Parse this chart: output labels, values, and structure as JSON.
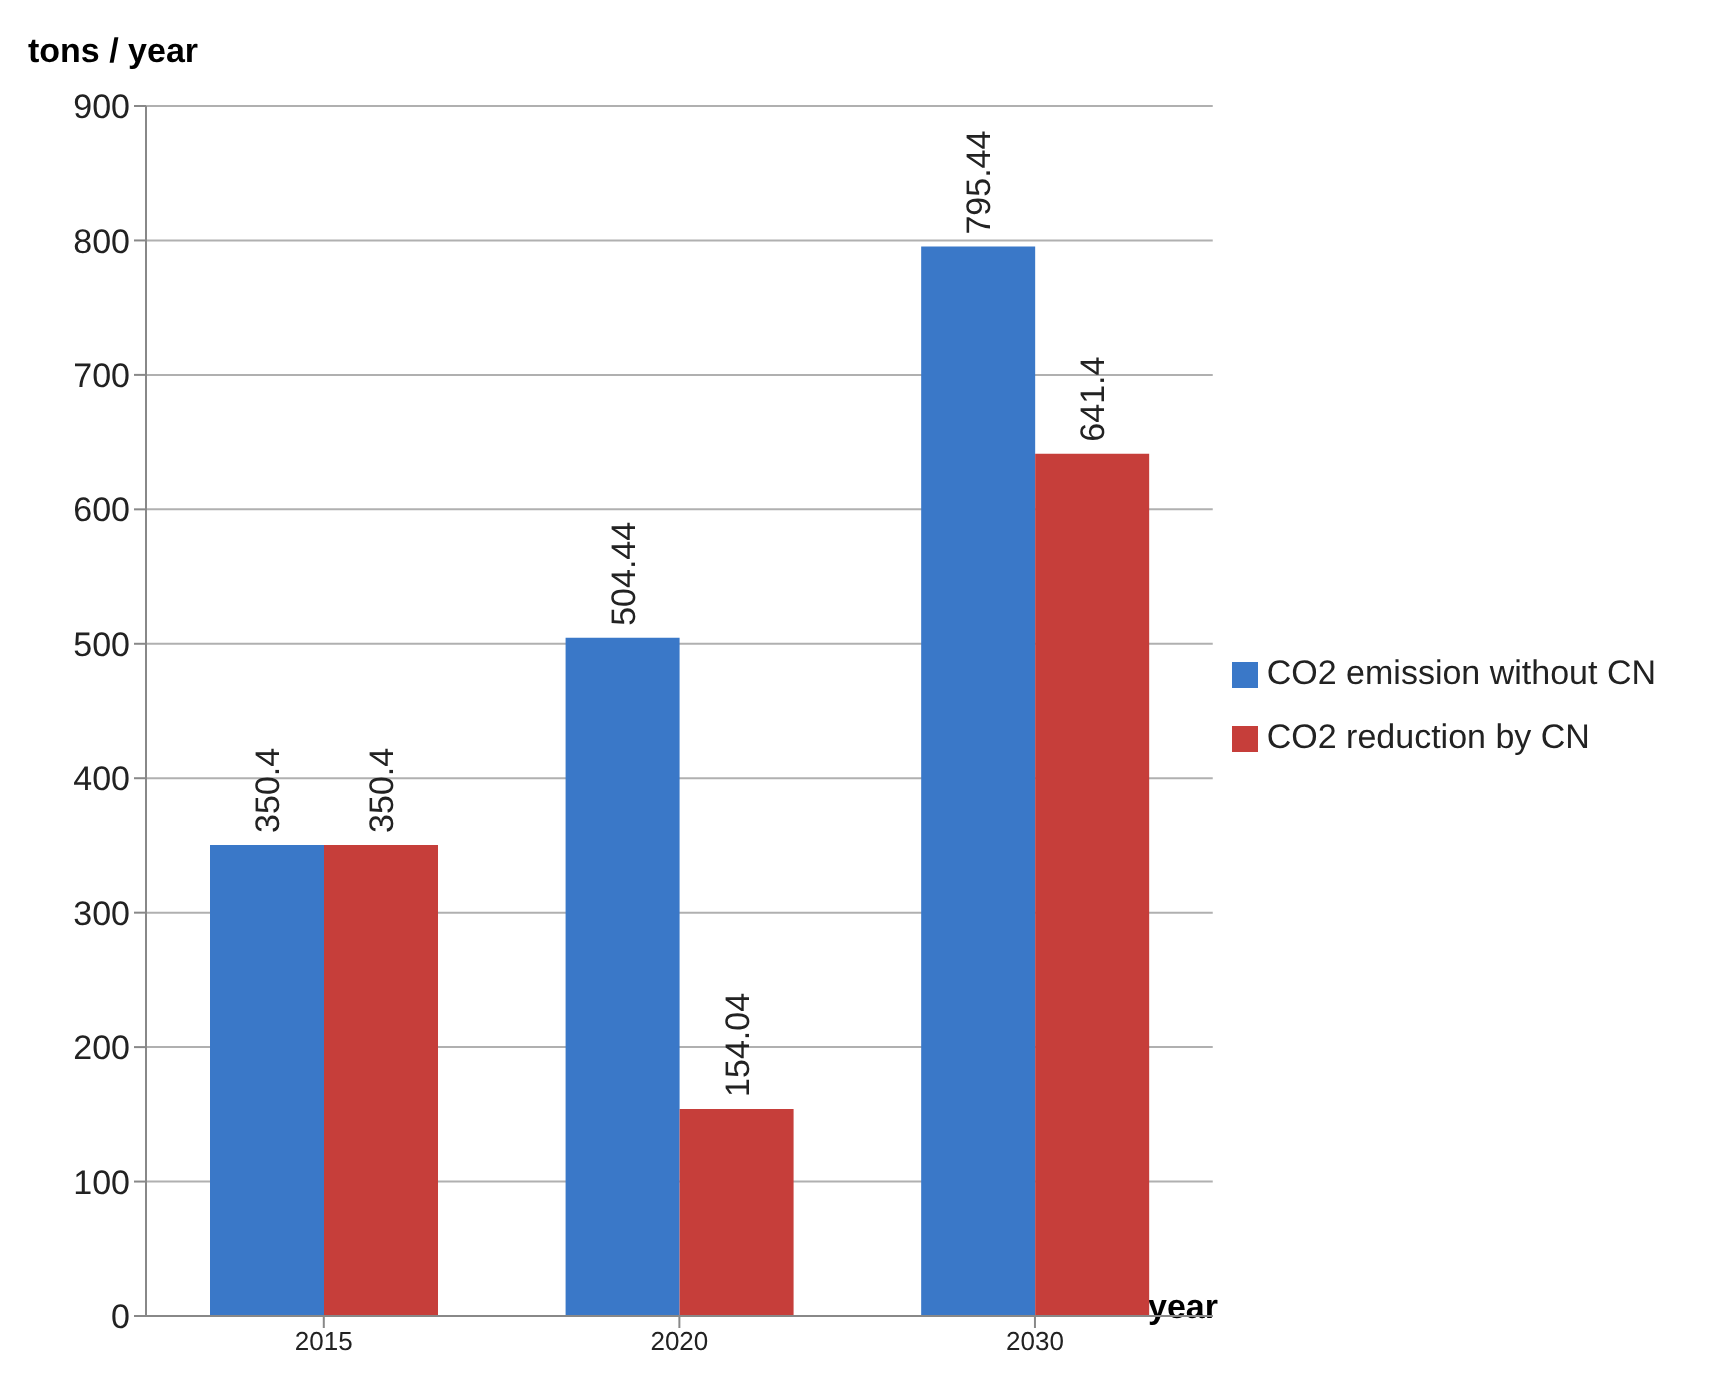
{
  "chart_data": {
    "type": "bar",
    "ylabel": "tons / year",
    "xlabel": "year",
    "categories": [
      "2015",
      "2020",
      "2030"
    ],
    "series": [
      {
        "name": "CO2 emission without CN",
        "color": "#3a78c8",
        "values": [
          350.4,
          504.44,
          795.44
        ]
      },
      {
        "name": "CO2 reduction by CN",
        "color": "#c63e3a",
        "values": [
          350.4,
          154.04,
          641.4
        ]
      }
    ],
    "ylim": [
      0,
      900
    ],
    "yticks": [
      0,
      100,
      200,
      300,
      400,
      500,
      600,
      700,
      800,
      900
    ],
    "grid": "y",
    "legend": "right",
    "data_labels": true
  }
}
